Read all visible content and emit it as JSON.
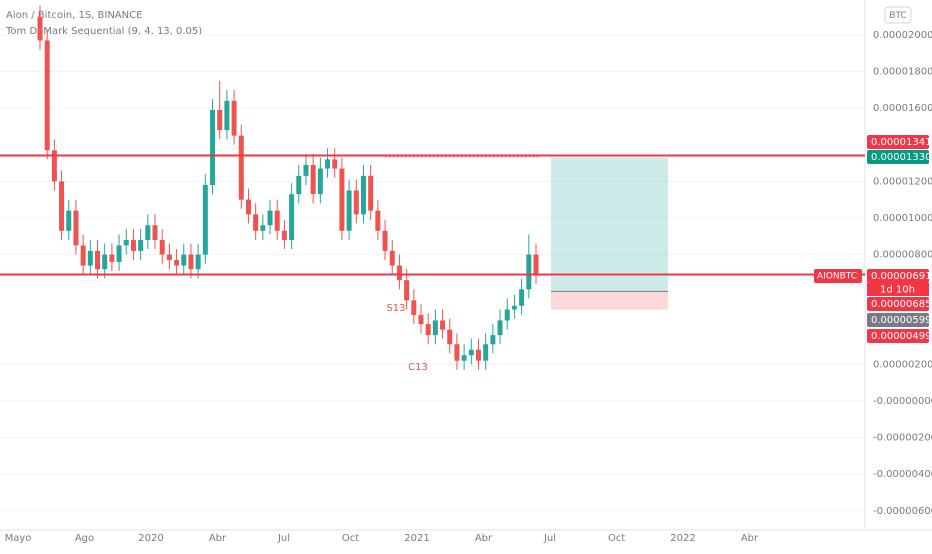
{
  "chart_data": {
    "type": "candlestick",
    "title": "Aion / Bitcoin, 1S, BINANCE",
    "subtitle": "Tom DeMark Sequential (9, 4, 13, 0.05)",
    "currency_badge": "BTC",
    "symbol": "AIONBTC",
    "countdown": "1d 10h",
    "up_color": "#26a69a",
    "down_color": "#ef5350",
    "ylim": [
      -7.05e-06,
      2.191e-05
    ],
    "grid": true,
    "yticks": [
      {
        "value": 2e-05,
        "label": "0.00002000"
      },
      {
        "value": 1.8e-05,
        "label": "0.00001800"
      },
      {
        "value": 1.6e-05,
        "label": "0.00001600"
      },
      {
        "value": 1.2e-05,
        "label": "0.00001200"
      },
      {
        "value": 1e-05,
        "label": "0.00001000"
      },
      {
        "value": 8e-06,
        "label": "0.00000800"
      },
      {
        "value": 2e-06,
        "label": "0.00000200"
      },
      {
        "value": 0,
        "label": "-0.00000000"
      },
      {
        "value": -2e-06,
        "label": "-0.00000200"
      },
      {
        "value": -4e-06,
        "label": "-0.00000400"
      },
      {
        "value": -6e-06,
        "label": "-0.00000600"
      }
    ],
    "xticks": [
      "Mayo",
      "Ago",
      "2020",
      "Abr",
      "Jul",
      "Oct",
      "2021",
      "Abr",
      "Jul",
      "Oct",
      "2022",
      "Abr"
    ],
    "open": [
      2.1e-05,
      1.97e-05,
      1.37e-05,
      1.2e-05,
      9.3e-06,
      1.04e-05,
      8.5e-06,
      7.4e-06,
      8.2e-06,
      7.2e-06,
      8e-06,
      7.6e-06,
      8.5e-06,
      8.8e-06,
      8.2e-06,
      8.8e-06,
      9.6e-06,
      8.8e-06,
      8e-06,
      7.7e-06,
      7.4e-06,
      8e-06,
      7.2e-06,
      8e-06,
      1.18e-05,
      1.59e-05,
      1.48e-05,
      1.64e-05,
      1.45e-05,
      1.1e-05,
      1.02e-05,
      9.3e-06,
      9.6e-06,
      1.04e-05,
      9.3e-06,
      8.8e-06,
      1.13e-05,
      1.23e-05,
      1.29e-05,
      1.13e-05,
      1.27e-05,
      1.32e-05,
      1.27e-05,
      9.3e-06,
      1.15e-05,
      1.02e-05,
      1.23e-05,
      1.04e-05,
      9.3e-06,
      8.2e-06,
      7.4e-06,
      6.6e-06,
      5.5e-06,
      4.7e-06,
      4.2e-06,
      3.6e-06,
      4.4e-06,
      3.9e-06,
      3.1e-06,
      2.2e-06,
      2.5e-06,
      2.8e-06,
      2.2e-06,
      3.1e-06,
      3.6e-06,
      4.4e-06,
      5e-06,
      5.2e-06,
      6.1e-06,
      8e-06
    ],
    "high": [
      2.16e-05,
      2.03e-05,
      1.43e-05,
      1.26e-05,
      1.1e-05,
      1.1e-05,
      9.1e-06,
      8.8e-06,
      8.8e-06,
      8.6e-06,
      8.6e-06,
      9.1e-06,
      9.4e-06,
      9.4e-06,
      9.4e-06,
      1.02e-05,
      1.02e-05,
      9.4e-06,
      8.6e-06,
      8.3e-06,
      8.6e-06,
      8.6e-06,
      8.6e-06,
      1.24e-05,
      1.65e-05,
      1.75e-05,
      1.7e-05,
      1.7e-05,
      1.51e-05,
      1.16e-05,
      1.08e-05,
      1.02e-05,
      1.1e-05,
      1.1e-05,
      9.9e-06,
      1.19e-05,
      1.29e-05,
      1.35e-05,
      1.35e-05,
      1.33e-05,
      1.38e-05,
      1.38e-05,
      1.33e-05,
      1.21e-05,
      1.21e-05,
      1.29e-05,
      1.29e-05,
      1.1e-05,
      9.9e-06,
      8.8e-06,
      8e-06,
      7.2e-06,
      6.1e-06,
      5.3e-06,
      4.8e-06,
      5e-06,
      5e-06,
      4.5e-06,
      3.7e-06,
      3.1e-06,
      3.4e-06,
      3.4e-06,
      3.7e-06,
      4.2e-06,
      5e-06,
      5.6e-06,
      5.8e-06,
      6.7e-06,
      9.1e-06,
      8.6e-06
    ],
    "low": [
      1.92e-05,
      1.32e-05,
      1.15e-05,
      8.8e-06,
      8.8e-06,
      8e-06,
      6.9e-06,
      6.9e-06,
      6.7e-06,
      6.7e-06,
      7.1e-06,
      7.1e-06,
      8e-06,
      7.7e-06,
      7.7e-06,
      8.3e-06,
      8.3e-06,
      7.5e-06,
      7.2e-06,
      6.9e-06,
      6.9e-06,
      6.7e-06,
      6.7e-06,
      7.5e-06,
      1.13e-05,
      1.43e-05,
      1.43e-05,
      1.4e-05,
      1.05e-05,
      9.7e-06,
      8.8e-06,
      8.8e-06,
      9.1e-06,
      8.8e-06,
      8.3e-06,
      8.3e-06,
      1.08e-05,
      1.18e-05,
      1.08e-05,
      1.08e-05,
      1.22e-05,
      1.22e-05,
      8.8e-06,
      8.8e-06,
      9.7e-06,
      9.7e-06,
      9.9e-06,
      8.8e-06,
      7.7e-06,
      6.9e-06,
      6.1e-06,
      5e-06,
      4.2e-06,
      3.7e-06,
      3.1e-06,
      3.1e-06,
      3.4e-06,
      2.6e-06,
      1.7e-06,
      1.7e-06,
      2e-06,
      1.7e-06,
      1.7e-06,
      2.6e-06,
      3.1e-06,
      3.9e-06,
      4.5e-06,
      4.7e-06,
      5.6e-06,
      6.4e-06
    ],
    "close": [
      1.97e-05,
      1.37e-05,
      1.2e-05,
      9.3e-06,
      1.04e-05,
      8.5e-06,
      7.4e-06,
      8.2e-06,
      7.2e-06,
      8e-06,
      7.6e-06,
      8.5e-06,
      8.8e-06,
      8.2e-06,
      8.8e-06,
      9.6e-06,
      8.8e-06,
      8e-06,
      7.7e-06,
      7.4e-06,
      8e-06,
      7.2e-06,
      8e-06,
      1.18e-05,
      1.59e-05,
      1.48e-05,
      1.64e-05,
      1.45e-05,
      1.1e-05,
      1.02e-05,
      9.3e-06,
      9.6e-06,
      1.04e-05,
      9.3e-06,
      8.8e-06,
      1.13e-05,
      1.23e-05,
      1.29e-05,
      1.13e-05,
      1.27e-05,
      1.32e-05,
      1.27e-05,
      9.3e-06,
      1.15e-05,
      1.02e-05,
      1.23e-05,
      1.04e-05,
      9.3e-06,
      8.2e-06,
      7.4e-06,
      6.6e-06,
      5.5e-06,
      4.7e-06,
      4.2e-06,
      3.6e-06,
      4.4e-06,
      3.9e-06,
      3.1e-06,
      2.2e-06,
      2.5e-06,
      2.8e-06,
      2.2e-06,
      3.1e-06,
      3.6e-06,
      4.4e-06,
      5e-06,
      5.2e-06,
      6.1e-06,
      8e-06,
      6.91e-06
    ],
    "hlines": [
      {
        "value": 1.341e-05,
        "color": "#f23645"
      },
      {
        "value": 6.91e-06,
        "color": "#f23645"
      }
    ],
    "position": {
      "target": 1.33e-05,
      "entry": 5.99e-06,
      "stop": 4.99e-06
    },
    "price_labels": [
      {
        "label": "0.00001341",
        "color": "#f23645"
      },
      {
        "label": "0.00001330",
        "color": "#089981"
      },
      {
        "label": "0.00000691",
        "color": "#f23645"
      },
      {
        "label": "0.00000685",
        "color": "#f23645"
      },
      {
        "label": "0.00000599",
        "color": "#787b86"
      },
      {
        "label": "0.00000499",
        "color": "#f23645"
      }
    ],
    "annotations": [
      "S13",
      "C13"
    ]
  }
}
